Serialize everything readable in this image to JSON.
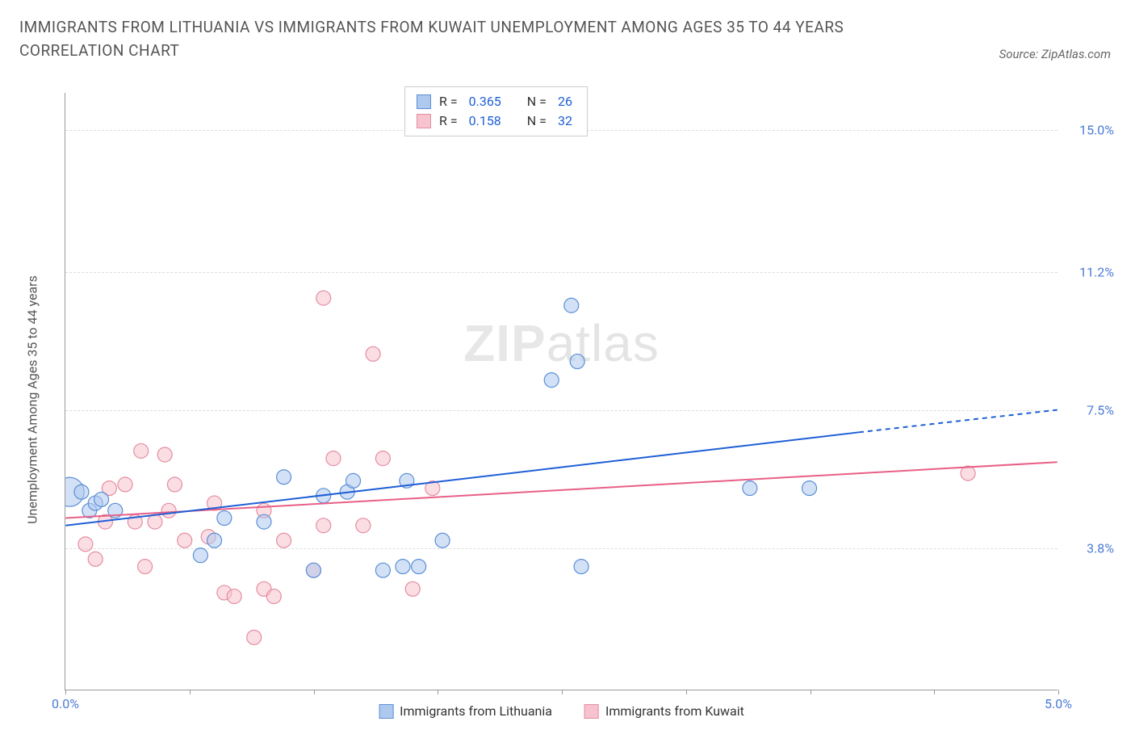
{
  "header": {
    "title": "IMMIGRANTS FROM LITHUANIA VS IMMIGRANTS FROM KUWAIT UNEMPLOYMENT AMONG AGES 35 TO 44 YEARS CORRELATION CHART",
    "source": "Source: ZipAtlas.com"
  },
  "chart": {
    "type": "scatter",
    "ylabel": "Unemployment Among Ages 35 to 44 years",
    "watermark_a": "ZIP",
    "watermark_b": "atlas",
    "xlim": [
      0.0,
      5.0
    ],
    "ylim": [
      0.0,
      16.0
    ],
    "yticks": [
      {
        "value": 3.8,
        "label": "3.8%"
      },
      {
        "value": 7.5,
        "label": "7.5%"
      },
      {
        "value": 11.2,
        "label": "11.2%"
      },
      {
        "value": 15.0,
        "label": "15.0%"
      }
    ],
    "xticks": [
      {
        "value": 0.0,
        "label": "0.0%"
      },
      {
        "value": 0.625,
        "label": ""
      },
      {
        "value": 1.25,
        "label": ""
      },
      {
        "value": 1.875,
        "label": ""
      },
      {
        "value": 2.5,
        "label": ""
      },
      {
        "value": 3.125,
        "label": ""
      },
      {
        "value": 3.75,
        "label": ""
      },
      {
        "value": 4.375,
        "label": ""
      },
      {
        "value": 5.0,
        "label": "5.0%"
      }
    ],
    "background_color": "#ffffff",
    "grid_color": "#dddddd",
    "series": [
      {
        "id": "lithuania",
        "label": "Immigrants from Lithuania",
        "fill": "#aec9ee",
        "stroke": "#5a8fd6",
        "fill_opacity": 0.55,
        "marker_radius": 9,
        "line_color": "#1e5fd6",
        "line_width": 2,
        "r_value": "0.365",
        "n_value": "26",
        "trend": {
          "x1": 0.0,
          "y1": 4.4,
          "x2": 4.0,
          "y2": 6.9,
          "x2_ext": 5.0,
          "y2_ext": 7.5
        },
        "points": [
          {
            "x": 0.02,
            "y": 5.3,
            "r": 18
          },
          {
            "x": 0.08,
            "y": 5.3
          },
          {
            "x": 0.12,
            "y": 4.8
          },
          {
            "x": 0.15,
            "y": 5.0
          },
          {
            "x": 0.18,
            "y": 5.1
          },
          {
            "x": 0.25,
            "y": 4.8
          },
          {
            "x": 0.68,
            "y": 3.6
          },
          {
            "x": 0.75,
            "y": 4.0
          },
          {
            "x": 0.8,
            "y": 4.6
          },
          {
            "x": 1.0,
            "y": 4.5
          },
          {
            "x": 1.1,
            "y": 5.7
          },
          {
            "x": 1.25,
            "y": 3.2
          },
          {
            "x": 1.3,
            "y": 5.2
          },
          {
            "x": 1.42,
            "y": 5.3
          },
          {
            "x": 1.45,
            "y": 5.6
          },
          {
            "x": 1.6,
            "y": 3.2
          },
          {
            "x": 1.7,
            "y": 3.3
          },
          {
            "x": 1.72,
            "y": 5.6
          },
          {
            "x": 1.78,
            "y": 3.3
          },
          {
            "x": 1.9,
            "y": 4.0
          },
          {
            "x": 2.45,
            "y": 8.3
          },
          {
            "x": 2.55,
            "y": 10.3
          },
          {
            "x": 2.58,
            "y": 8.8
          },
          {
            "x": 2.6,
            "y": 3.3
          },
          {
            "x": 3.45,
            "y": 5.4
          },
          {
            "x": 3.75,
            "y": 5.4
          }
        ]
      },
      {
        "id": "kuwait",
        "label": "Immigrants from Kuwait",
        "fill": "#f6c3ce",
        "stroke": "#e58da1",
        "fill_opacity": 0.55,
        "marker_radius": 9,
        "line_color": "#e85f87",
        "line_width": 2,
        "r_value": "0.158",
        "n_value": "32",
        "trend": {
          "x1": 0.0,
          "y1": 4.6,
          "x2": 5.0,
          "y2": 6.1
        },
        "points": [
          {
            "x": 0.1,
            "y": 3.9
          },
          {
            "x": 0.15,
            "y": 3.5
          },
          {
            "x": 0.2,
            "y": 4.5
          },
          {
            "x": 0.22,
            "y": 5.4
          },
          {
            "x": 0.3,
            "y": 5.5
          },
          {
            "x": 0.35,
            "y": 4.5
          },
          {
            "x": 0.38,
            "y": 6.4
          },
          {
            "x": 0.4,
            "y": 3.3
          },
          {
            "x": 0.45,
            "y": 4.5
          },
          {
            "x": 0.5,
            "y": 6.3
          },
          {
            "x": 0.52,
            "y": 4.8
          },
          {
            "x": 0.55,
            "y": 5.5
          },
          {
            "x": 0.6,
            "y": 4.0
          },
          {
            "x": 0.72,
            "y": 4.1
          },
          {
            "x": 0.75,
            "y": 5.0
          },
          {
            "x": 0.8,
            "y": 2.6
          },
          {
            "x": 0.85,
            "y": 2.5
          },
          {
            "x": 0.95,
            "y": 1.4
          },
          {
            "x": 1.0,
            "y": 2.7
          },
          {
            "x": 1.0,
            "y": 4.8
          },
          {
            "x": 1.05,
            "y": 2.5
          },
          {
            "x": 1.1,
            "y": 4.0
          },
          {
            "x": 1.25,
            "y": 3.2
          },
          {
            "x": 1.3,
            "y": 4.4
          },
          {
            "x": 1.3,
            "y": 10.5
          },
          {
            "x": 1.35,
            "y": 6.2
          },
          {
            "x": 1.5,
            "y": 4.4
          },
          {
            "x": 1.55,
            "y": 9.0
          },
          {
            "x": 1.6,
            "y": 6.2
          },
          {
            "x": 1.75,
            "y": 2.7
          },
          {
            "x": 1.85,
            "y": 5.4
          },
          {
            "x": 4.55,
            "y": 5.8
          }
        ]
      }
    ],
    "legend_top_static": {
      "R_label": "R =",
      "N_label": "N ="
    }
  }
}
